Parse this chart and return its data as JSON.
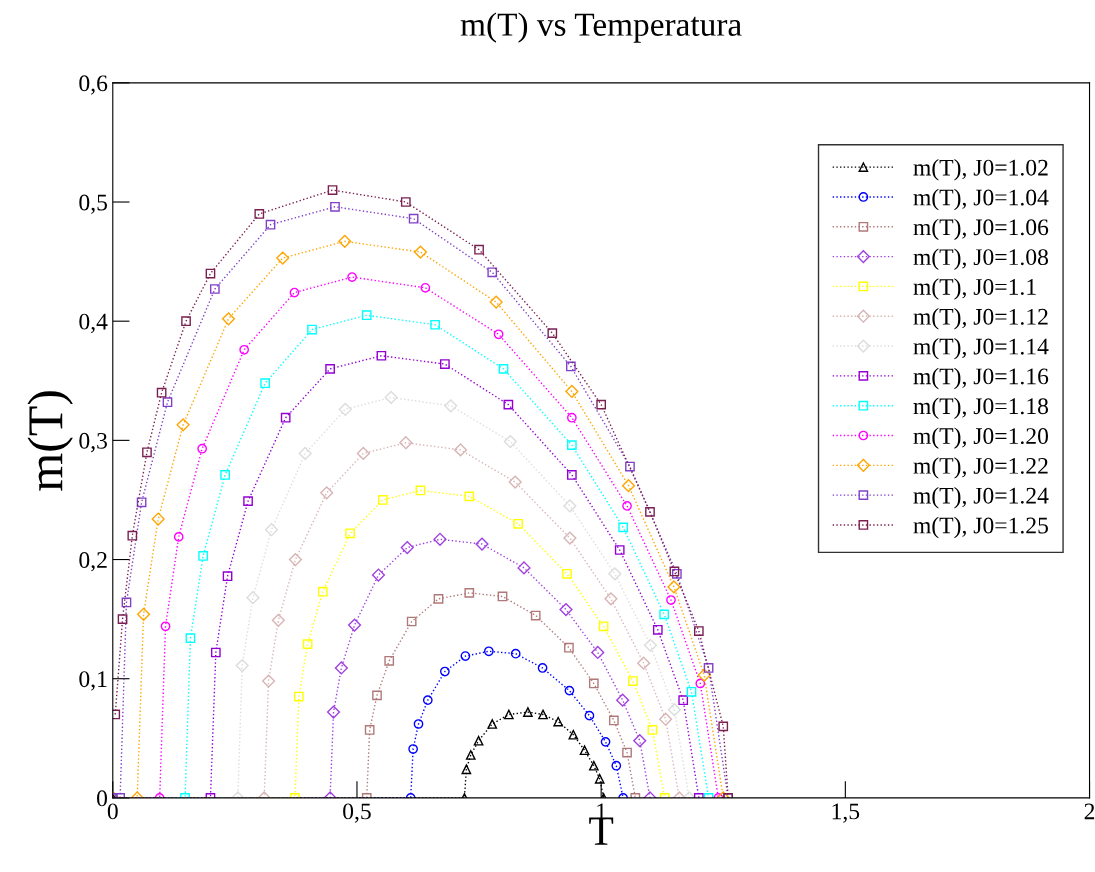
{
  "chart_data": {
    "type": "line",
    "title": "m(T) vs Temperatura",
    "xlabel": "T",
    "ylabel": "m(T)",
    "xlim": [
      0,
      2
    ],
    "ylim": [
      0,
      0.6
    ],
    "xticks": [
      0,
      {
        "value": 0.5,
        "label": "0,5"
      },
      1,
      {
        "value": 1.5,
        "label": "1,5"
      },
      2
    ],
    "yticks": [
      0,
      {
        "value": 0.1,
        "label": "0,1"
      },
      {
        "value": 0.2,
        "label": "0,2"
      },
      {
        "value": 0.3,
        "label": "0,3"
      },
      {
        "value": 0.4,
        "label": "0,4"
      },
      {
        "value": 0.5,
        "label": "0,5"
      },
      {
        "value": 0.6,
        "label": "0,6"
      }
    ],
    "grid": false,
    "legend": "top right",
    "line_style": "dotted",
    "series": [
      {
        "name": "m(T), J0=1.02",
        "color": "#000000",
        "marker": "triangle",
        "x": [
          0,
          0.72,
          0.724,
          0.733,
          0.749,
          0.777,
          0.811,
          0.85,
          0.881,
          0.912,
          0.943,
          0.966,
          0.985,
          0.997,
          1.005
        ],
        "values": [
          0,
          0,
          0.024,
          0.036,
          0.048,
          0.062,
          0.07,
          0.072,
          0.07,
          0.064,
          0.053,
          0.04,
          0.027,
          0.016,
          0
        ]
      },
      {
        "name": "m(T), J0=1.04",
        "color": "#0000ff",
        "marker": "circle",
        "x": [
          0,
          0.61,
          0.615,
          0.626,
          0.645,
          0.68,
          0.722,
          0.77,
          0.825,
          0.88,
          0.935,
          0.976,
          1.009,
          1.031,
          1.045
        ],
        "values": [
          0,
          0,
          0.041,
          0.062,
          0.082,
          0.106,
          0.119,
          0.123,
          0.121,
          0.109,
          0.09,
          0.069,
          0.047,
          0.027,
          0
        ]
      },
      {
        "name": "m(T), J0=1.06",
        "color": "#b07878",
        "marker": "square",
        "x": [
          0,
          0.52,
          0.526,
          0.541,
          0.566,
          0.612,
          0.667,
          0.73,
          0.798,
          0.866,
          0.934,
          0.985,
          1.026,
          1.053,
          1.07
        ],
        "values": [
          0,
          0,
          0.057,
          0.086,
          0.115,
          0.148,
          0.167,
          0.172,
          0.169,
          0.153,
          0.126,
          0.096,
          0.065,
          0.038,
          0
        ]
      },
      {
        "name": "m(T), J0=1.08",
        "color": "#a040e0",
        "marker": "diamond",
        "x": [
          0,
          0.445,
          0.452,
          0.468,
          0.495,
          0.544,
          0.603,
          0.67,
          0.756,
          0.842,
          0.928,
          0.993,
          1.044,
          1.079,
          1.1
        ],
        "values": [
          0,
          0,
          0.072,
          0.109,
          0.145,
          0.187,
          0.21,
          0.217,
          0.213,
          0.193,
          0.158,
          0.122,
          0.082,
          0.048,
          0
        ]
      },
      {
        "name": "m(T), J0=1.1",
        "color": "#ffff00",
        "marker": "square",
        "x": [
          0,
          0.373,
          0.381,
          0.399,
          0.43,
          0.486,
          0.553,
          0.63,
          0.73,
          0.83,
          0.93,
          1.005,
          1.065,
          1.105,
          1.13
        ],
        "values": [
          0,
          0,
          0.085,
          0.129,
          0.173,
          0.222,
          0.25,
          0.258,
          0.253,
          0.23,
          0.188,
          0.144,
          0.098,
          0.057,
          0
        ]
      },
      {
        "name": "m(T), J0=1.12",
        "color": "#d8b4b4",
        "marker": "diamond",
        "x": [
          0,
          0.31,
          0.319,
          0.339,
          0.374,
          0.438,
          0.513,
          0.6,
          0.712,
          0.824,
          0.936,
          1.02,
          1.087,
          1.132,
          1.16
        ],
        "values": [
          0,
          0,
          0.098,
          0.149,
          0.2,
          0.256,
          0.289,
          0.298,
          0.292,
          0.265,
          0.218,
          0.167,
          0.113,
          0.066,
          0
        ]
      },
      {
        "name": "m(T), J0=1.14",
        "color": "#dcdcdc",
        "marker": "diamond",
        "x": [
          0,
          0.256,
          0.265,
          0.287,
          0.325,
          0.394,
          0.476,
          0.57,
          0.692,
          0.814,
          0.936,
          1.028,
          1.101,
          1.15,
          1.18
        ],
        "values": [
          0,
          0,
          0.111,
          0.168,
          0.225,
          0.289,
          0.326,
          0.336,
          0.329,
          0.299,
          0.245,
          0.188,
          0.128,
          0.074,
          0
        ]
      },
      {
        "name": "m(T), J0=1.16",
        "color": "#9400d3",
        "marker": "square",
        "x": [
          0,
          0.2,
          0.211,
          0.235,
          0.277,
          0.354,
          0.445,
          0.55,
          0.68,
          0.81,
          0.94,
          1.038,
          1.116,
          1.168,
          1.2
        ],
        "values": [
          0,
          0,
          0.122,
          0.186,
          0.249,
          0.319,
          0.36,
          0.371,
          0.364,
          0.33,
          0.271,
          0.208,
          0.141,
          0.082,
          0
        ]
      },
      {
        "name": "m(T), J0=1.18",
        "color": "#00ffff",
        "marker": "square",
        "x": [
          0,
          0.148,
          0.159,
          0.185,
          0.23,
          0.312,
          0.408,
          0.52,
          0.66,
          0.8,
          0.94,
          1.045,
          1.129,
          1.185,
          1.22
        ],
        "values": [
          0,
          0,
          0.134,
          0.203,
          0.271,
          0.348,
          0.393,
          0.405,
          0.397,
          0.36,
          0.296,
          0.227,
          0.154,
          0.089,
          0
        ]
      },
      {
        "name": "m(T), J0=1.20",
        "color": "#ff00ff",
        "marker": "circle",
        "x": [
          0,
          0.096,
          0.108,
          0.135,
          0.183,
          0.269,
          0.372,
          0.49,
          0.64,
          0.79,
          0.94,
          1.053,
          1.143,
          1.203,
          1.24
        ],
        "values": [
          0,
          0,
          0.144,
          0.219,
          0.293,
          0.376,
          0.424,
          0.437,
          0.428,
          0.389,
          0.319,
          0.245,
          0.166,
          0.096,
          0
        ]
      },
      {
        "name": "m(T), J0=1.22",
        "color": "#ffa500",
        "marker": "diamond",
        "x": [
          0,
          0.05,
          0.063,
          0.093,
          0.144,
          0.237,
          0.348,
          0.475,
          0.63,
          0.785,
          0.94,
          1.056,
          1.149,
          1.211,
          1.25
        ],
        "values": [
          0,
          0,
          0.154,
          0.234,
          0.313,
          0.402,
          0.453,
          0.467,
          0.458,
          0.416,
          0.341,
          0.262,
          0.177,
          0.103,
          0
        ]
      },
      {
        "name": "m(T), J0=1.24",
        "color": "#8040c8",
        "marker": "square",
        "x": [
          0,
          0.015,
          0.028,
          0.059,
          0.112,
          0.209,
          0.323,
          0.455,
          0.616,
          0.777,
          0.938,
          1.059,
          1.155,
          1.22,
          1.26
        ],
        "values": [
          0,
          0,
          0.164,
          0.248,
          0.332,
          0.427,
          0.481,
          0.496,
          0.486,
          0.441,
          0.362,
          0.278,
          0.188,
          0.109,
          0
        ]
      },
      {
        "name": "m(T), J0=1.25",
        "color": "#7a1f50",
        "marker": "square",
        "x": [
          0.005,
          0.02,
          0.04,
          0.07,
          0.1,
          0.15,
          0.2,
          0.3,
          0.45,
          0.6,
          0.75,
          0.9,
          1.0,
          1.1,
          1.15,
          1.2,
          1.25,
          1.26
        ],
        "values": [
          0.07,
          0.15,
          0.22,
          0.29,
          0.34,
          0.4,
          0.44,
          0.49,
          0.51,
          0.5,
          0.46,
          0.39,
          0.33,
          0.24,
          0.19,
          0.14,
          0.06,
          0
        ]
      }
    ]
  }
}
